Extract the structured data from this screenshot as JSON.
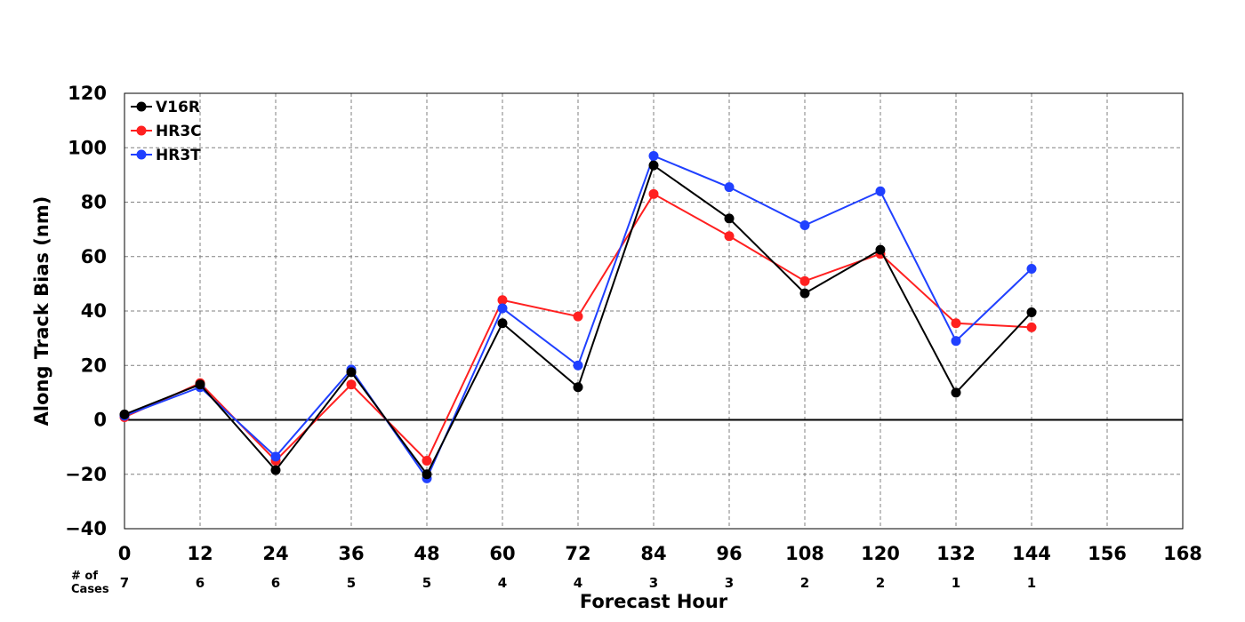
{
  "chart_data": {
    "type": "line",
    "xlabel": "Forecast Hour",
    "ylabel": "Along Track Bias (nm)",
    "xlim": [
      0,
      168
    ],
    "ylim": [
      -40,
      120
    ],
    "xticks": [
      0,
      12,
      24,
      36,
      48,
      60,
      72,
      84,
      96,
      108,
      120,
      132,
      144,
      156,
      168
    ],
    "yticks": [
      -40,
      -20,
      0,
      20,
      40,
      60,
      80,
      100,
      120
    ],
    "grid": true,
    "legend_position": "top-left",
    "cases_label": "# of\nCases",
    "cases": [
      {
        "x": 0,
        "n": "7"
      },
      {
        "x": 12,
        "n": "6"
      },
      {
        "x": 24,
        "n": "6"
      },
      {
        "x": 36,
        "n": "5"
      },
      {
        "x": 48,
        "n": "5"
      },
      {
        "x": 60,
        "n": "4"
      },
      {
        "x": 72,
        "n": "4"
      },
      {
        "x": 84,
        "n": "3"
      },
      {
        "x": 96,
        "n": "3"
      },
      {
        "x": 108,
        "n": "2"
      },
      {
        "x": 120,
        "n": "2"
      },
      {
        "x": 132,
        "n": "1"
      },
      {
        "x": 144,
        "n": "1"
      }
    ],
    "x": [
      0,
      12,
      24,
      36,
      48,
      60,
      72,
      84,
      96,
      108,
      120,
      132,
      144
    ],
    "series": [
      {
        "name": "V16R",
        "color": "#000000",
        "values": [
          2,
          13,
          -18.5,
          17.5,
          -20,
          35.5,
          12,
          93.5,
          74,
          46.5,
          62.5,
          10,
          39.5
        ]
      },
      {
        "name": "HR3C",
        "color": "#ff2020",
        "values": [
          1,
          13.5,
          -15,
          13,
          -15,
          44,
          38,
          83,
          67.5,
          51,
          61,
          35.5,
          34
        ]
      },
      {
        "name": "HR3T",
        "color": "#2040ff",
        "values": [
          1.5,
          12,
          -13.5,
          18.5,
          -21.5,
          41,
          20,
          97,
          85.5,
          71.5,
          84,
          29,
          55.5
        ]
      }
    ]
  }
}
